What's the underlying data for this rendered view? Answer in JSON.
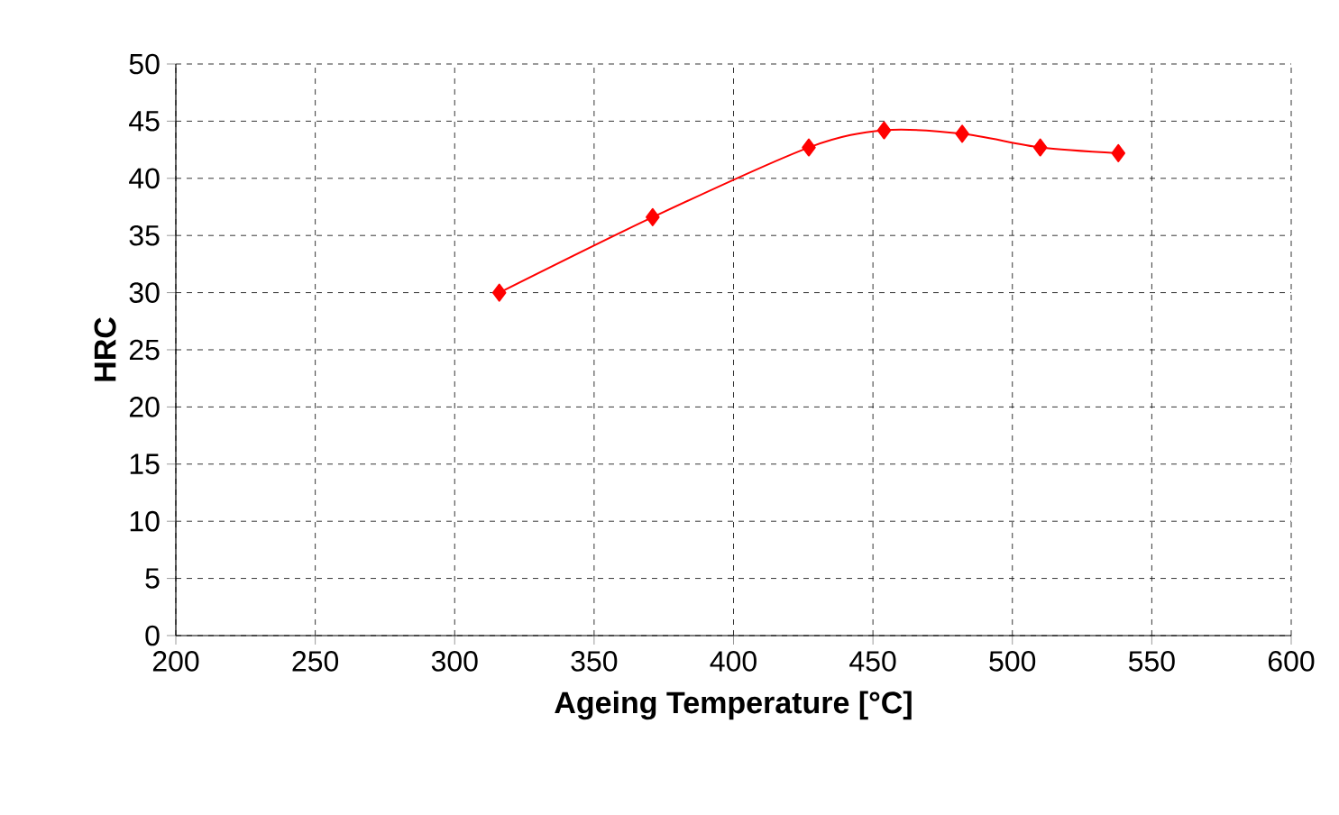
{
  "chart_data": {
    "type": "line",
    "xlabel": "Ageing Temperature [°C]",
    "ylabel": "HRC",
    "x": [
      316,
      371,
      427,
      454,
      482,
      510,
      538
    ],
    "values": [
      30,
      36.6,
      42.7,
      44.2,
      43.9,
      42.7,
      42.2
    ],
    "color": "#ff0000",
    "marker": "diamond",
    "line_style": "solid",
    "xlim": [
      200,
      600
    ],
    "ylim": [
      0,
      50
    ],
    "xticks": [
      200,
      250,
      300,
      350,
      400,
      450,
      500,
      550,
      600
    ],
    "yticks": [
      0,
      5,
      10,
      15,
      20,
      25,
      30,
      35,
      40,
      45,
      50
    ],
    "grid": true
  }
}
